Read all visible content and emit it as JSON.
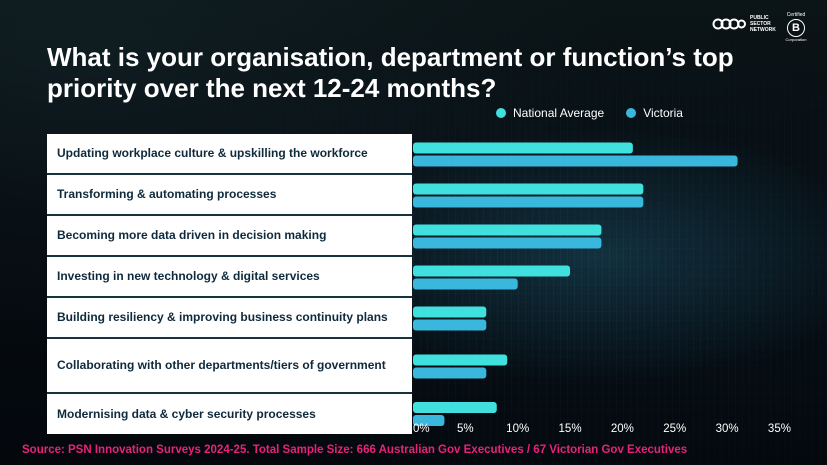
{
  "title": "What is your organisation, department or function’s top priority over the next 12-24 months?",
  "logo": {
    "text_lines": [
      "PUBLIC",
      "SECTOR",
      "NETWORK"
    ],
    "bcorp_certified": "Certified",
    "bcorp_letter": "B",
    "bcorp_corp": "Corporation"
  },
  "source": "Source: PSN Innovation Surveys 2024-25. Total Sample Size: 666 Australian Gov Executives / 67 Victorian Gov Executives",
  "colors": {
    "national": "#3fe0de",
    "victoria": "#3ab7dc",
    "source_text": "#e8227a",
    "label_text": "#0f2a3c"
  },
  "chart_data": {
    "type": "bar",
    "orientation": "horizontal",
    "title": "What is your organisation, department or function’s top priority over the next 12-24 months?",
    "categories": [
      "Updating workplace culture & upskilling the workforce",
      "Transforming & automating processes",
      "Becoming more data driven in decision making",
      "Investing in new technology & digital services",
      "Building resiliency & improving business continuity plans",
      "Collaborating with other departments/tiers of government",
      "Modernising data & cyber security processes"
    ],
    "series": [
      {
        "name": "National Average",
        "color": "#3fe0de",
        "values": [
          21,
          22,
          18,
          15,
          7,
          9,
          8
        ]
      },
      {
        "name": "Victoria",
        "color": "#3ab7dc",
        "values": [
          31,
          22,
          18,
          10,
          7,
          7,
          3
        ]
      }
    ],
    "x_ticks": [
      "0%",
      "5%",
      "10%",
      "15%",
      "20%",
      "25%",
      "30%",
      "35%"
    ],
    "xlim": [
      0,
      35
    ],
    "legend_position": "top-right",
    "grid": false
  }
}
